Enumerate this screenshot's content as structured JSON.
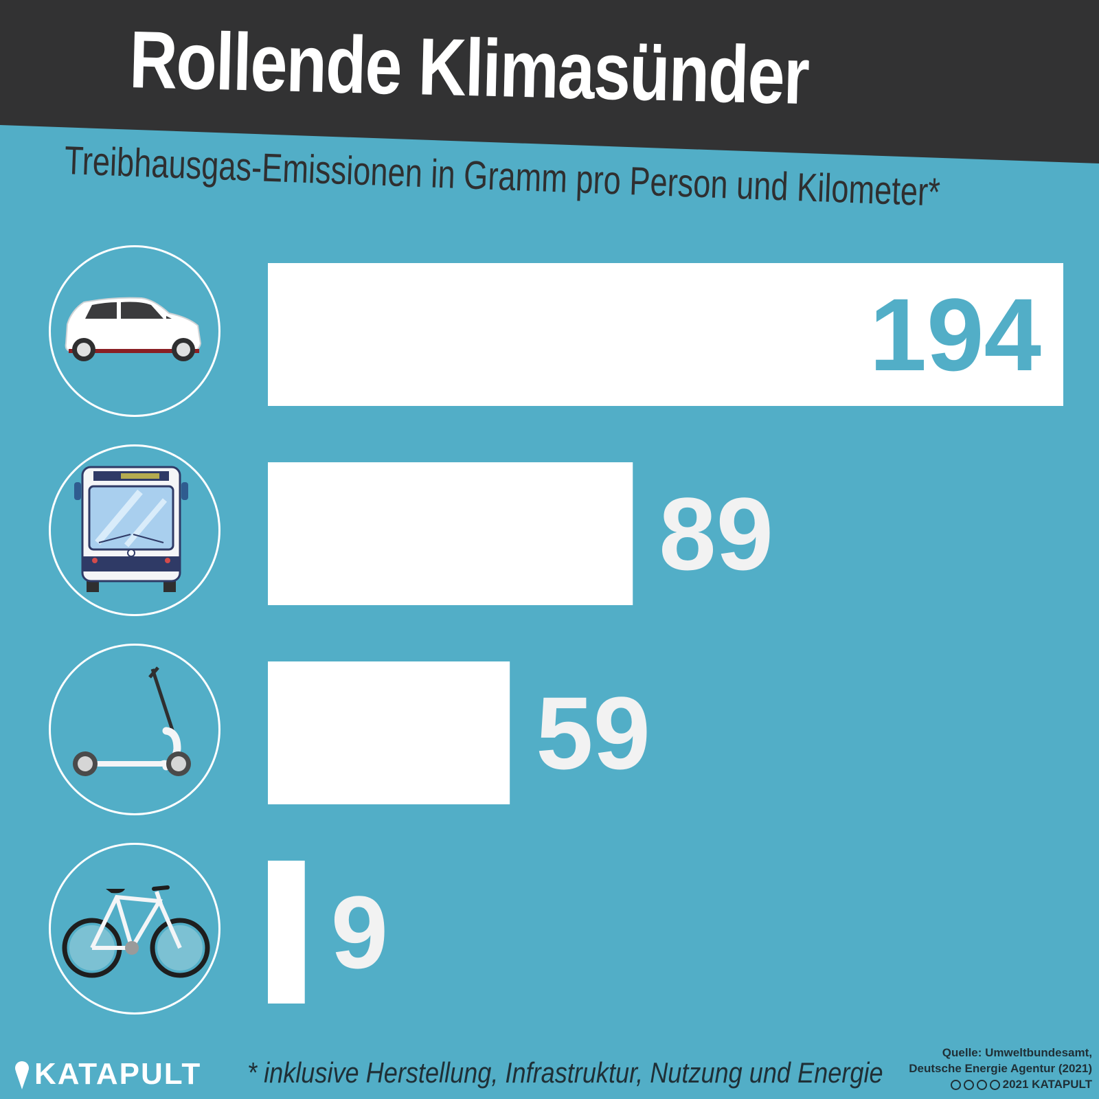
{
  "header": {
    "title": "Rollende Klimasünder",
    "subtitle": "Treibhausgas-Emissionen in Gramm pro Person und Kilometer*"
  },
  "colors": {
    "background": "#52aec7",
    "header_band": "#323233",
    "bar": "#ffffff",
    "value_inside": "#52aec7",
    "value_outside": "#f2f2f2"
  },
  "icons": [
    "car-icon",
    "bus-icon",
    "e-scooter-icon",
    "bicycle-icon"
  ],
  "chart_data": {
    "type": "bar",
    "orientation": "horizontal",
    "categories": [
      "",
      "",
      "",
      ""
    ],
    "values": [
      194,
      89,
      59,
      9
    ],
    "value_labels": [
      "194",
      "89",
      "59",
      "9"
    ],
    "title": "Rollende Klimasünder",
    "subtitle": "Treibhausgas-Emissionen in Gramm pro Person und Kilometer*",
    "xlim": [
      0,
      194
    ],
    "grid": false
  },
  "footer": {
    "note": "* inklusive Herstellung, Infrastruktur, Nutzung und Energie",
    "logo_text": "KATAPULT",
    "source_line1": "Quelle: Umweltbundesamt,",
    "source_line2": "Deutsche Energie Agentur (2021)",
    "license_text": "2021 KATAPULT"
  }
}
